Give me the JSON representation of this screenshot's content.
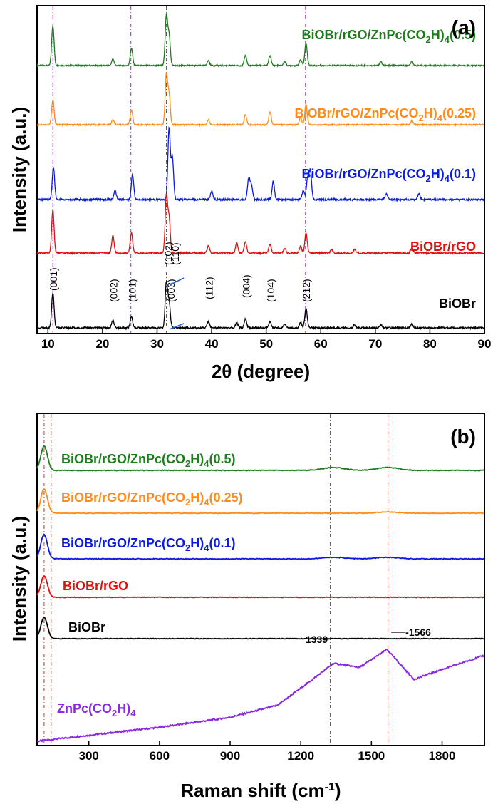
{
  "chart_data": [
    {
      "panel": "(a)",
      "type": "line",
      "xlabel": "2θ (degree)",
      "ylabel": "Intensity (a.u.)",
      "xlim": [
        8,
        90
      ],
      "xticks": [
        10,
        20,
        30,
        40,
        50,
        60,
        70,
        80,
        90
      ],
      "reference_lines_x": [
        10.9,
        25.2,
        31.7,
        57.2
      ],
      "series": [
        {
          "name": "BiOBr/rGO/ZnPc(CO2H)4(0.5)",
          "name_parts": [
            "BiOBr/rGO/ZnPc(CO",
            "2",
            "H)",
            "4",
            "(0.5)"
          ],
          "color": "#1e7b1e",
          "baseline": 0.0,
          "peaks": [
            [
              10.9,
              0.8
            ],
            [
              21.9,
              0.13
            ],
            [
              25.3,
              0.35
            ],
            [
              31.7,
              1.0
            ],
            [
              32.2,
              0.6
            ],
            [
              39.4,
              0.1
            ],
            [
              46.2,
              0.2
            ],
            [
              50.7,
              0.2
            ],
            [
              53.4,
              0.08
            ],
            [
              56.3,
              0.12
            ],
            [
              57.3,
              0.45
            ],
            [
              71.0,
              0.08
            ],
            [
              76.7,
              0.08
            ]
          ]
        },
        {
          "name": "BiOBr/rGO/ZnPc(CO2H)4(0.25)",
          "name_parts": [
            "BiOBr/rGO/ZnPc(CO",
            "2",
            "H)",
            "4",
            "(0.25)"
          ],
          "color": "#ff8c1a",
          "baseline": 0.0,
          "peaks": [
            [
              10.9,
              0.5
            ],
            [
              21.9,
              0.1
            ],
            [
              25.3,
              0.3
            ],
            [
              31.7,
              1.0
            ],
            [
              32.2,
              0.6
            ],
            [
              39.4,
              0.1
            ],
            [
              46.2,
              0.2
            ],
            [
              50.7,
              0.25
            ],
            [
              56.3,
              0.15
            ],
            [
              57.3,
              0.4
            ],
            [
              76.7,
              0.08
            ]
          ]
        },
        {
          "name": "BiOBr/rGO/ZnPc(CO2H)4(0.1)",
          "name_parts": [
            "BiOBr/rGO/ZnPc(CO",
            "2",
            "H)",
            "4",
            "(0.1)"
          ],
          "color": "#0a1adf",
          "baseline": 0.0,
          "peaks": [
            [
              11.0,
              0.45
            ],
            [
              22.3,
              0.12
            ],
            [
              25.5,
              0.35
            ],
            [
              32.2,
              1.0
            ],
            [
              32.8,
              0.6
            ],
            [
              40.0,
              0.12
            ],
            [
              46.8,
              0.3
            ],
            [
              47.3,
              0.2
            ],
            [
              51.3,
              0.25
            ],
            [
              56.8,
              0.12
            ],
            [
              57.6,
              0.3
            ],
            [
              58.1,
              0.4
            ],
            [
              72.0,
              0.08
            ],
            [
              78.0,
              0.08
            ]
          ]
        },
        {
          "name": "BiOBr/rGO",
          "name_parts": [
            "BiOBr/rGO",
            "",
            "",
            "",
            ""
          ],
          "color": "#e01010",
          "baseline": 0.0,
          "peaks": [
            [
              10.9,
              0.75
            ],
            [
              21.9,
              0.3
            ],
            [
              25.3,
              0.35
            ],
            [
              31.7,
              1.0
            ],
            [
              32.2,
              0.6
            ],
            [
              39.4,
              0.12
            ],
            [
              44.6,
              0.18
            ],
            [
              46.2,
              0.2
            ],
            [
              50.7,
              0.15
            ],
            [
              53.4,
              0.08
            ],
            [
              56.3,
              0.12
            ],
            [
              57.3,
              0.35
            ],
            [
              62.0,
              0.06
            ],
            [
              66.2,
              0.06
            ],
            [
              76.7,
              0.08
            ]
          ]
        },
        {
          "name": "BiOBr",
          "name_parts": [
            "BiOBr",
            "",
            "",
            "",
            ""
          ],
          "color": "#000000",
          "baseline": 0.0,
          "peaks": [
            [
              10.9,
              0.55
            ],
            [
              21.9,
              0.12
            ],
            [
              25.3,
              0.18
            ],
            [
              31.7,
              0.7
            ],
            [
              32.2,
              0.4
            ],
            [
              39.4,
              0.1
            ],
            [
              44.6,
              0.08
            ],
            [
              46.2,
              0.14
            ],
            [
              50.7,
              0.1
            ],
            [
              53.4,
              0.06
            ],
            [
              56.3,
              0.08
            ],
            [
              57.3,
              0.3
            ],
            [
              66.2,
              0.05
            ],
            [
              71.0,
              0.05
            ],
            [
              76.7,
              0.06
            ]
          ]
        }
      ],
      "hkl_labels": [
        {
          "text": "(001)",
          "x": 10.9
        },
        {
          "text": "(002)",
          "x": 21.9
        },
        {
          "text": "(101)",
          "x": 25.3
        },
        {
          "text": "(102)",
          "x": 31.9
        },
        {
          "text": "(110)",
          "x": 33.2
        },
        {
          "text": "(003)",
          "x": 32.4
        },
        {
          "text": "(112)",
          "x": 39.4
        },
        {
          "text": "(004)",
          "x": 46.2
        },
        {
          "text": "(104)",
          "x": 50.7
        },
        {
          "text": "(212)",
          "x": 57.2
        }
      ]
    },
    {
      "panel": "(b)",
      "type": "line",
      "xlabel": "Raman shift (cm-1)",
      "xlabel_parts": [
        "Raman shift (cm",
        "-1",
        ")"
      ],
      "ylabel": "Intensity (a.u.)",
      "xlim": [
        80,
        1980
      ],
      "xticks": [
        300,
        600,
        900,
        1200,
        1500,
        1800
      ],
      "reference_lines_x": [
        110,
        140,
        1325,
        1570
      ],
      "peak_labels": [
        {
          "text": "1339",
          "x": 1339
        },
        {
          "text": "1566",
          "x": 1566
        }
      ],
      "series": [
        {
          "name": "BiOBr/rGO/ZnPc(CO2H)4(0.5)",
          "name_parts": [
            "BiOBr/rGO/ZnPc(CO",
            "2",
            "H)",
            "4",
            "(0.5)"
          ],
          "color": "#1e7b1e",
          "peaks": [
            [
              110,
              1.0
            ],
            [
              1339,
              0.12
            ],
            [
              1570,
              0.12
            ]
          ]
        },
        {
          "name": "BiOBr/rGO/ZnPc(CO2H)4(0.25)",
          "name_parts": [
            "BiOBr/rGO/ZnPc(CO",
            "2",
            "H)",
            "4",
            "(0.25)"
          ],
          "color": "#ff8c1a",
          "peaks": [
            [
              110,
              1.0
            ],
            [
              1570,
              0.05
            ]
          ]
        },
        {
          "name": "BiOBr/rGO/ZnPc(CO2H)4(0.1)",
          "name_parts": [
            "BiOBr/rGO/ZnPc(CO",
            "2",
            "H)",
            "4",
            "(0.1)"
          ],
          "color": "#0a1adf",
          "peaks": [
            [
              110,
              1.0
            ],
            [
              1339,
              0.06
            ],
            [
              1570,
              0.06
            ]
          ]
        },
        {
          "name": "BiOBr/rGO",
          "name_parts": [
            "BiOBr/rGO",
            "",
            "",
            "",
            ""
          ],
          "color": "#e01010",
          "peaks": [
            [
              110,
              1.0
            ]
          ]
        },
        {
          "name": "BiOBr",
          "name_parts": [
            "BiOBr",
            "",
            "",
            "",
            ""
          ],
          "color": "#000000",
          "peaks": [
            [
              110,
              1.0
            ]
          ]
        },
        {
          "name": "ZnPc(CO2H)4",
          "name_parts": [
            "ZnPc(CO",
            "2",
            "H)",
            "4",
            ""
          ],
          "color": "#8a2be2",
          "broad": true,
          "profile": [
            [
              80,
              0.0
            ],
            [
              300,
              0.06
            ],
            [
              600,
              0.14
            ],
            [
              900,
              0.24
            ],
            [
              1100,
              0.36
            ],
            [
              1250,
              0.62
            ],
            [
              1339,
              0.78
            ],
            [
              1450,
              0.74
            ],
            [
              1566,
              0.92
            ],
            [
              1680,
              0.62
            ],
            [
              1800,
              0.72
            ],
            [
              1980,
              0.86
            ]
          ]
        }
      ]
    }
  ]
}
